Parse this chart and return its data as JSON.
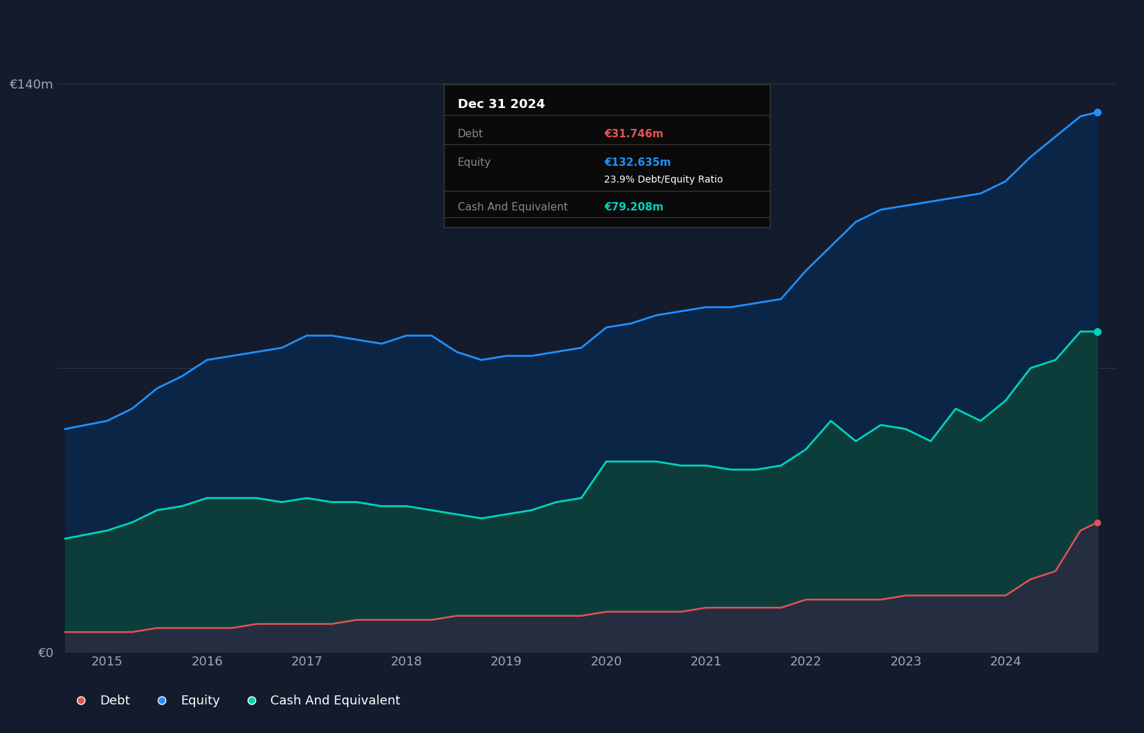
{
  "bg_color": "#141B2D",
  "plot_bg_color": "#141B2D",
  "grid_color": "#2D3A52",
  "title_text": "Dec 31 2024",
  "tooltip_debt_label": "Debt",
  "tooltip_equity_label": "Equity",
  "tooltip_cash_label": "Cash And Equivalent",
  "tooltip_debt": "€31.746m",
  "tooltip_equity": "€132.635m",
  "tooltip_ratio": "23.9% Debt/Equity Ratio",
  "tooltip_cash": "€79.208m",
  "ylabel_top": "€140m",
  "ylabel_zero": "€0",
  "xlabel_ticks": [
    "2015",
    "2016",
    "2017",
    "2018",
    "2019",
    "2020",
    "2021",
    "2022",
    "2023",
    "2024"
  ],
  "legend_items": [
    "Debt",
    "Equity",
    "Cash And Equivalent"
  ],
  "debt_color": "#E05555",
  "equity_color": "#1E90FF",
  "cash_color": "#00D4B8",
  "equity_fill_color": "#0A2545",
  "cash_fill_color": "#0D3D3A",
  "debt_fill_color": "#252E40",
  "years": [
    2014.58,
    2015.0,
    2015.25,
    2015.5,
    2015.75,
    2016.0,
    2016.25,
    2016.5,
    2016.75,
    2017.0,
    2017.25,
    2017.5,
    2017.75,
    2018.0,
    2018.25,
    2018.5,
    2018.75,
    2019.0,
    2019.25,
    2019.5,
    2019.75,
    2020.0,
    2020.25,
    2020.5,
    2020.75,
    2021.0,
    2021.25,
    2021.5,
    2021.75,
    2022.0,
    2022.25,
    2022.5,
    2022.75,
    2023.0,
    2023.25,
    2023.5,
    2023.75,
    2024.0,
    2024.25,
    2024.5,
    2024.75,
    2024.92
  ],
  "equity_vals": [
    55,
    57,
    60,
    65,
    68,
    72,
    73,
    74,
    75,
    78,
    78,
    77,
    76,
    78,
    78,
    74,
    72,
    73,
    73,
    74,
    75,
    80,
    81,
    83,
    84,
    85,
    85,
    86,
    87,
    94,
    100,
    106,
    109,
    110,
    111,
    112,
    113,
    116,
    122,
    127,
    132,
    133
  ],
  "cash_vals": [
    28,
    30,
    32,
    35,
    36,
    38,
    38,
    38,
    37,
    38,
    37,
    37,
    36,
    36,
    35,
    34,
    33,
    34,
    35,
    37,
    38,
    47,
    47,
    47,
    46,
    46,
    45,
    45,
    46,
    50,
    57,
    52,
    56,
    55,
    52,
    60,
    57,
    62,
    70,
    72,
    79,
    79
  ],
  "debt_vals": [
    5,
    5,
    5,
    6,
    6,
    6,
    6,
    7,
    7,
    7,
    7,
    8,
    8,
    8,
    8,
    9,
    9,
    9,
    9,
    9,
    9,
    10,
    10,
    10,
    10,
    11,
    11,
    11,
    11,
    13,
    13,
    13,
    13,
    14,
    14,
    14,
    14,
    14,
    18,
    20,
    30,
    32
  ],
  "ylim": [
    0,
    148
  ],
  "xlim": [
    2014.5,
    2025.1
  ]
}
